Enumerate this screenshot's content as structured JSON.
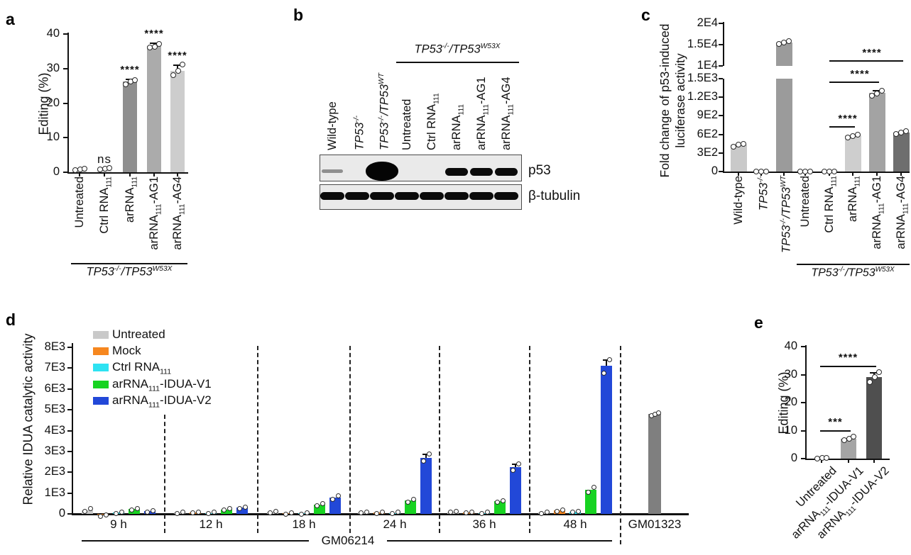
{
  "panels": {
    "a": {
      "letter": "a"
    },
    "b": {
      "letter": "b",
      "bracket_label": "TP53^{-/-}/TP53^{W53X}",
      "lanes": [
        {
          "text": "Wild-type",
          "italic": false
        },
        {
          "text": "TP53^{-/-}",
          "italic": true
        },
        {
          "text": "TP53^{-/-}/TP53^{WT}",
          "italic": true
        },
        {
          "text": "Untreated",
          "italic": false
        },
        {
          "text": "Ctrl RNA~111~",
          "italic": false
        },
        {
          "text": "arRNA~111~",
          "italic": false
        },
        {
          "text": "arRNA~111~-AG1",
          "italic": false
        },
        {
          "text": "arRNA~111~-AG4",
          "italic": false
        }
      ],
      "blots": [
        {
          "name": "p53",
          "bands": [
            0.3,
            0,
            1,
            0,
            0,
            0.92,
            0.92,
            0.85
          ]
        },
        {
          "name": "β-tubulin",
          "bands": [
            0.95,
            0.95,
            0.9,
            0.95,
            0.9,
            0.92,
            0.95,
            0.92
          ]
        }
      ]
    },
    "c": {
      "letter": "c"
    },
    "d": {
      "letter": "d"
    },
    "e": {
      "letter": "e"
    }
  },
  "chart_data": [
    {
      "panel": "a",
      "type": "bar",
      "ylabel": "Editing (%)",
      "ylim": [
        0,
        40
      ],
      "yticks": [
        {
          "v": 0,
          "t": "0"
        },
        {
          "v": 10,
          "t": "10"
        },
        {
          "v": 20,
          "t": "20"
        },
        {
          "v": 30,
          "t": "30"
        },
        {
          "v": 40,
          "t": "40"
        }
      ],
      "categories": [
        "Untreated",
        "Ctrl RNA~111~",
        "arRNA~111~",
        "arRNA~111~-AG1",
        "arRNA~111~-AG4"
      ],
      "categories_italic": [
        false,
        false,
        false,
        false,
        false
      ],
      "values": [
        0.9,
        1.0,
        26.2,
        36.6,
        29.4
      ],
      "errors": [
        0.2,
        0.25,
        0.7,
        0.7,
        1.6
      ],
      "points": [
        [
          0.7,
          0.9,
          1.1
        ],
        [
          0.8,
          1.0,
          1.3
        ],
        [
          25.4,
          26.2,
          26.7
        ],
        [
          36.1,
          36.4,
          37.2
        ],
        [
          28.2,
          29.3,
          31.2
        ]
      ],
      "bar_colors": [
        "#d8d8d8",
        "#d8d8d8",
        "#8f8f8f",
        "#ababab",
        "#cdcdcd"
      ],
      "annotations": [
        "",
        "ns",
        "****",
        "****",
        "****"
      ],
      "group_label": "TP53^{-/-}/TP53^{W53X}"
    },
    {
      "panel": "c",
      "type": "bar",
      "broken_axis": true,
      "ylabel": "Fold change of p53-induced luciferase activity",
      "ylabel_lines": [
        "Fold change of p53-induced",
        "luciferase activity"
      ],
      "axis_lower": {
        "range": [
          0,
          1500
        ],
        "ticks": [
          {
            "v": 0,
            "t": "0"
          },
          {
            "v": 300,
            "t": "3E2"
          },
          {
            "v": 600,
            "t": "6E2"
          },
          {
            "v": 900,
            "t": "9E2"
          },
          {
            "v": 1200,
            "t": "1.2E3"
          },
          {
            "v": 1500,
            "t": "1.5E3"
          }
        ]
      },
      "axis_upper": {
        "range": [
          10000,
          20000
        ],
        "ticks": [
          {
            "v": 10000,
            "t": "1E4"
          },
          {
            "v": 15000,
            "t": "1.5E4"
          },
          {
            "v": 20000,
            "t": "2E4"
          }
        ]
      },
      "categories": [
        "Wild-type",
        "TP53^{-/-}",
        "TP53^{-/-}/TP53^{WT}",
        "Untreated",
        "Ctrl RNA~111~",
        "arRNA~111~",
        "arRNA~111~-AG1",
        "arRNA~111~-AG4"
      ],
      "categories_italic": [
        false,
        true,
        true,
        false,
        false,
        false,
        false,
        false
      ],
      "values": [
        430,
        0,
        15500,
        0,
        0,
        580,
        1270,
        630
      ],
      "errors": [
        20,
        0,
        0,
        0,
        0,
        30,
        40,
        20
      ],
      "points": [
        [
          405,
          430,
          450
        ],
        [
          0,
          0,
          0
        ],
        [
          15250,
          15550,
          15900
        ],
        [
          0,
          0,
          0
        ],
        [
          0,
          0,
          0
        ],
        [
          550,
          575,
          600
        ],
        [
          1230,
          1265,
          1300
        ],
        [
          610,
          630,
          650
        ]
      ],
      "bar_colors": [
        "#c9c9c9",
        "#c9c9c9",
        "#9b9b9b",
        "#c9c9c9",
        "#c9c9c9",
        "#cecece",
        "#a3a3a3",
        "#6e6e6e"
      ],
      "significance": [
        {
          "from": 4,
          "to": 5,
          "label": "****"
        },
        {
          "from": 4,
          "to": 6,
          "label": "****"
        },
        {
          "from": 4,
          "to": 7,
          "label": "****"
        }
      ],
      "group_label": "TP53^{-/-}/TP53^{W53X}",
      "group_span": [
        3,
        7
      ]
    },
    {
      "panel": "d",
      "type": "grouped-bar",
      "ylabel": "Relative IDUA catalytic activity",
      "ylim": [
        0,
        8000
      ],
      "yticks": [
        {
          "v": 0,
          "t": "0"
        },
        {
          "v": 1000,
          "t": "1E3"
        },
        {
          "v": 2000,
          "t": "2E3"
        },
        {
          "v": 3000,
          "t": "3E3"
        },
        {
          "v": 4000,
          "t": "4E3"
        },
        {
          "v": 5000,
          "t": "5E3"
        },
        {
          "v": 6000,
          "t": "6E3"
        },
        {
          "v": 7000,
          "t": "7E3"
        },
        {
          "v": 8000,
          "t": "8E3"
        }
      ],
      "groups": [
        "9 h",
        "12 h",
        "18 h",
        "24 h",
        "36 h",
        "48 h"
      ],
      "series": [
        {
          "name": "Untreated",
          "color": "#c9c9c9",
          "values": [
            180,
            60,
            90,
            70,
            100,
            60
          ],
          "points": [
            [
              110,
              240
            ],
            [
              30,
              90
            ],
            [
              60,
              120
            ],
            [
              40,
              100
            ],
            [
              70,
              130
            ],
            [
              30,
              90
            ]
          ]
        },
        {
          "name": "Mock",
          "color": "#f6871f",
          "values": [
            -40,
            70,
            25,
            60,
            70,
            160
          ],
          "points": [
            [
              -120,
              -40
            ],
            [
              40,
              100
            ],
            [
              0,
              50
            ],
            [
              30,
              90
            ],
            [
              40,
              100
            ],
            [
              120,
              200
            ]
          ]
        },
        {
          "name": "Ctrl RNA~111~",
          "color": "#2ee2f2",
          "values": [
            60,
            40,
            25,
            40,
            50,
            100
          ],
          "points": [
            [
              30,
              90
            ],
            [
              10,
              70
            ],
            [
              0,
              50
            ],
            [
              10,
              70
            ],
            [
              20,
              80
            ],
            [
              70,
              130
            ]
          ]
        },
        {
          "name": "arRNA~111~-IDUA-V1",
          "color": "#17d321",
          "values": [
            230,
            220,
            440,
            650,
            600,
            1150
          ],
          "points": [
            [
              200,
              260
            ],
            [
              190,
              250
            ],
            [
              400,
              490
            ],
            [
              560,
              710
            ],
            [
              560,
              640
            ],
            [
              1050,
              1260
            ]
          ]
        },
        {
          "name": "arRNA~111~-IDUA-V2",
          "color": "#2248d8",
          "values": [
            130,
            290,
            800,
            2700,
            2250,
            7100
          ],
          "points": [
            [
              90,
              160
            ],
            [
              250,
              330
            ],
            [
              700,
              870
            ],
            [
              2550,
              2870
            ],
            [
              2100,
              2400
            ],
            [
              6750,
              7400
            ]
          ]
        }
      ],
      "extra_group": {
        "label": "GM01323",
        "value": 4800,
        "color": "#7f7f7f",
        "points": [
          4700,
          4780,
          4860
        ]
      },
      "group_label": "GM06214"
    },
    {
      "panel": "e",
      "type": "bar",
      "ylabel": "Editing (%)",
      "ylim": [
        0,
        40
      ],
      "yticks": [
        {
          "v": 0,
          "t": "0"
        },
        {
          "v": 10,
          "t": "10"
        },
        {
          "v": 20,
          "t": "20"
        },
        {
          "v": 30,
          "t": "30"
        },
        {
          "v": 40,
          "t": "40"
        }
      ],
      "categories": [
        "Untreated",
        "arRNA~111~-IDUA-V1",
        "arRNA~111~-IDUA-V2"
      ],
      "categories_italic": [
        false,
        false,
        false
      ],
      "values": [
        0.2,
        7.0,
        29.2
      ],
      "errors": [
        0.1,
        0.7,
        1.5
      ],
      "points": [
        [
          0.1,
          0.2,
          0.3
        ],
        [
          6.5,
          7.1,
          7.8
        ],
        [
          27.3,
          29.2,
          31.0
        ]
      ],
      "bar_colors": [
        "#d8d8d8",
        "#a5a5a5",
        "#4f4f4f"
      ],
      "annotations": [
        "",
        "",
        ""
      ],
      "significance": [
        {
          "from": 0,
          "to": 1,
          "label": "***"
        },
        {
          "from": 0,
          "to": 2,
          "label": "****"
        }
      ]
    }
  ]
}
